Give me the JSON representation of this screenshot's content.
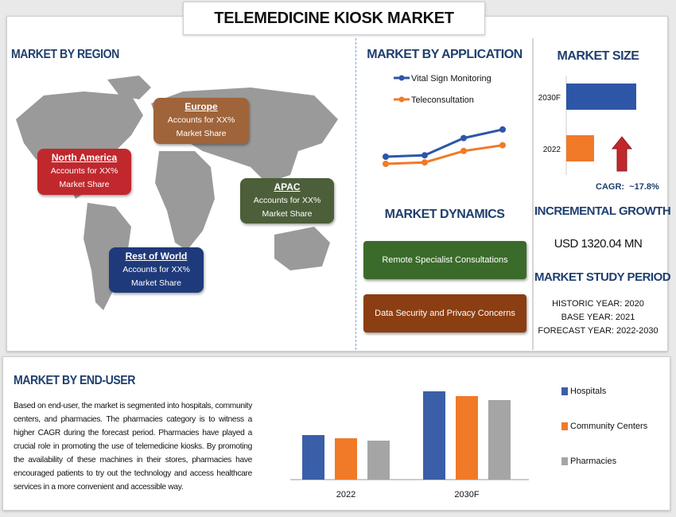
{
  "title": "TELEMEDICINE KIOSK MARKET",
  "region": {
    "heading": "MARKET BY REGION",
    "items": [
      {
        "name": "Europe",
        "text1": "Accounts for XX%",
        "text2": "Market Share",
        "color": "#a0643a"
      },
      {
        "name": "North America",
        "text1": "Accounts for XX%",
        "text2": "Market Share",
        "color": "#c0282d"
      },
      {
        "name": "APAC",
        "text1": "Accounts for XX%",
        "text2": "Market Share",
        "color": "#4d5e3a"
      },
      {
        "name": "Rest of World",
        "text1": "Accounts for XX%",
        "text2": "Market Share",
        "color": "#1f3a7a"
      }
    ]
  },
  "application": {
    "heading": "MARKET BY APPLICATION"
  },
  "dynamics": {
    "heading": "MARKET DYNAMICS",
    "items": [
      {
        "label": "Remote Specialist Consultations",
        "color": "#3b6b2a"
      },
      {
        "label": "Data Security and Privacy Concerns",
        "color": "#8b3e12"
      }
    ]
  },
  "size": {
    "heading": "MARKET SIZE",
    "cagr_label": "CAGR:",
    "cagr": "~17.8%"
  },
  "incremental": {
    "heading": "INCREMENTAL GROWTH",
    "value": "USD 1320.04 MN"
  },
  "study": {
    "heading": "MARKET STUDY PERIOD",
    "historic": "HISTORIC YEAR: 2020",
    "base": "BASE YEAR: 2021",
    "forecast": "FORECAST YEAR: 2022-2030"
  },
  "enduser": {
    "heading": "MARKET BY END-USER",
    "text": "Based on end-user, the market is segmented into hospitals, community centers, and pharmacies. The pharmacies category is to witness a higher CAGR during the forecast period. Pharmacies have played a crucial role in promoting the use of telemedicine kiosks. By promoting the availability of these machines in their stores, pharmacies have encouraged patients to try out the technology and access healthcare services in a more convenient and accessible way."
  },
  "chart_data": [
    {
      "type": "line",
      "x": [
        1,
        2,
        3,
        4
      ],
      "series": [
        {
          "name": "Vital Sign Monitoring",
          "values": [
            1.0,
            1.1,
            2.3,
            2.9
          ],
          "color": "#2e56a6"
        },
        {
          "name": "Teleconsultation",
          "values": [
            0.5,
            0.6,
            1.4,
            1.8
          ],
          "color": "#f07a28"
        }
      ],
      "legend": "top",
      "grid": false
    },
    {
      "type": "bar",
      "orientation": "horizontal",
      "categories": [
        "2030F",
        "2022"
      ],
      "values": [
        88,
        35
      ],
      "colors": [
        "#2e56a6",
        "#f07a28"
      ],
      "grid": false
    },
    {
      "type": "bar",
      "categories": [
        "2022",
        "2030F"
      ],
      "series": [
        {
          "name": "Hospitals",
          "values": [
            56,
            111
          ],
          "color": "#3a5fa8"
        },
        {
          "name": "Community Centers",
          "values": [
            52,
            105
          ],
          "color": "#f07a28"
        },
        {
          "name": "Pharmacies",
          "values": [
            49,
            100
          ],
          "color": "#a5a5a5"
        }
      ],
      "legend": "right",
      "grid": false
    }
  ]
}
